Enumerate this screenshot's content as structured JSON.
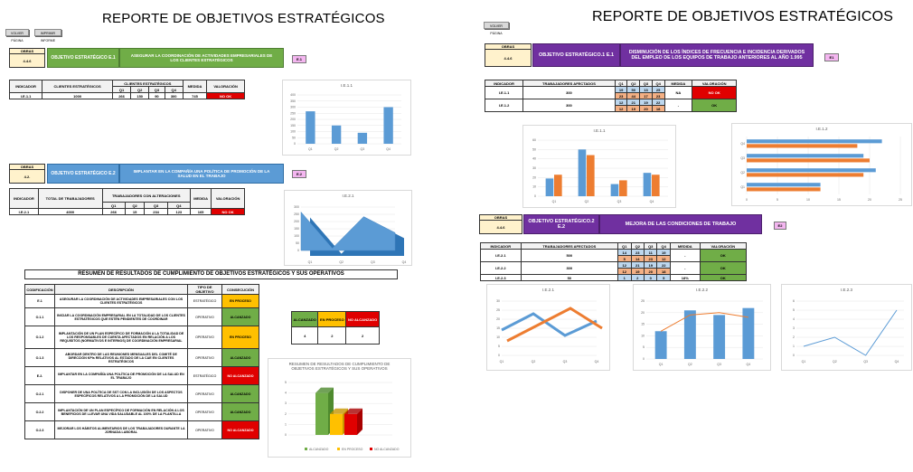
{
  "left": {
    "title": "REPORTE DE OBJETIVOS ESTRATÉGICOS",
    "buttons": [
      "VOLVER PÁGINA",
      "IMPRIMIR INFORME"
    ],
    "sections": [
      {
        "obras_label": "OBRAS",
        "obras_value": "4.4.6",
        "objective_label": "OBJETIVO ESTRATÉGICO E.1",
        "objective_text": "ASEGURAR LA COORDINACIÓN DE ACTIVIDADES EMPRESARIALES DE LOS CLIENTES ESTRATÉGICOS",
        "tag": "E.1",
        "table": {
          "headers": [
            "INDICADOR",
            "CLIENTES ESTRATÉGICOS",
            "CLIENTES ESTRATÉGICOS",
            "MEDIDA",
            "VALORACIÓN"
          ],
          "quarters": [
            "Q1",
            "Q2",
            "Q3",
            "Q4"
          ],
          "rows": [
            {
              "indicator": "I.E.1.1",
              "total": "1000",
              "q": [
                "266",
                "150",
                "90",
                "300"
              ],
              "medida": "745",
              "valoracion": "NO OK"
            }
          ]
        },
        "chart": {
          "title": "I.E.1.1"
        }
      },
      {
        "obras_label": "OBRAS",
        "obras_value": "4.2.",
        "objective_label": "OBJETIVO ESTRATÉGICO E.2",
        "objective_text": "IMPLANTAR EN LA COMPAÑÍA UNA POLÍTICA DE PROMOCIÓN DE LA SALUD EN EL TRABAJO",
        "tag": "E.2",
        "table": {
          "headers": [
            "INDICADOR",
            "TOTAL DE TRABAJADORES",
            "TRABAJADORES CON ALTERACIONES",
            "MEDIDA",
            "VALORACIÓN"
          ],
          "quarters": [
            "Q1",
            "Q2",
            "Q3",
            "Q4"
          ],
          "rows": [
            {
              "indicator": "I.E.2.1",
              "total": "4000",
              "q": [
                "266",
                "15",
                "234",
                "123"
              ],
              "medida": "165",
              "valoracion": "NO OK"
            }
          ]
        },
        "chart": {
          "title": "I.E.2.1"
        }
      }
    ],
    "summary": {
      "title": "RESUMEN DE RESULTADOS DE CUMPLIMIENTO DE OBJETIVOS ESTRATÉGICOS Y SUS OPERATIVOS",
      "headers": [
        "CODIFICACIÓN",
        "DESCRIPCIÓN",
        "TIPO DE OBJETIVO",
        "CONSECUCIÓN"
      ],
      "rows": [
        {
          "code": "E.1",
          "desc": "ASEGURAR LA COORDINACIÓN DE ACTIVIDADES EMPRESARIALES CON LOS CLIENTES ESTRATÉGICOS",
          "type": "ESTRATÉGICO",
          "status": "EN PROCESO"
        },
        {
          "code": "O.1.1",
          "desc": "INICIAR LA COORDINACIÓN EMPRESARIAL EN LA TOTALIDAD DE LOS CLIENTES ESTRATÉGICOS QUE ESTÉN PENDIENTES DE COORDINAR",
          "type": "OPERATIVO",
          "status": "ALCANZADO"
        },
        {
          "code": "O.1.2",
          "desc": "IMPLANTACIÓN DE UN PLAN ESPECÍFICO DE FORMACIÓN A LA TOTALIDAD DE LOS RESPONSABLES DE CUENTA AFECTADOS EN RELACIÓN A LOS REQUISITOS (NORMATIVOS E INTERNOS) DE COORDINACIÓN EMPRESARIAL",
          "type": "OPERATIVO",
          "status": "EN PROCESO"
        },
        {
          "code": "O.1.3",
          "desc": "ABORDAR DENTRO DE LAS REUNIONES MENSUALES DEL COMITÉ DE DIRECCIÓN KPIs RELATIVOS AL ESTADO DE LA CAE EN CLIENTES ESTRATÉGICOS",
          "type": "OPERATIVO",
          "status": "ALCANZADO"
        },
        {
          "code": "E.2.",
          "desc": "IMPLANTAR EN LA COMPAÑÍA UNA POLÍTICA DE PROMOCIÓN DE LA SALUD EN EL TRABAJO",
          "type": "ESTRATÉGICO",
          "status": "NO ALCANZADO"
        },
        {
          "code": "O.2.1",
          "desc": "DISPONER DE UNA POLÍTICA DE SST CON LA INCLUSIÓN DE LOS ASPECTOS ESPECÍFICOS RELATIVOS A LA PROMOCIÓN DE LA SALUD",
          "type": "OPERATIVO",
          "status": "ALCANZADO"
        },
        {
          "code": "O.2.2",
          "desc": "IMPLANTACIÓN DE UN PLAN ESPECÍFICO DE FORMACIÓN EN RELACIÓN A LOS BENEFICIOS DE LLEVAR UNA VIDA SALUDABLE AL 100% DE LA PLANTILLA",
          "type": "OPERATIVO",
          "status": "ALCANZADO"
        },
        {
          "code": "O.2.3",
          "desc": "MEJORAR LOS HÁBITOS ALIMENTARIOS DE LOS TRABAJADORES DURANTE LA JORNADA LABORAL",
          "type": "OPERATIVO",
          "status": "NO ALCANZADO"
        }
      ],
      "counts": {
        "headers": [
          "ALCANZADO",
          "EN PROCESO",
          "NO ALCANZADO"
        ],
        "values": [
          "4",
          "2",
          "2"
        ]
      },
      "chart": {
        "title": "RESUMEN DE RESULTADOS DE CUMPLIMIENTO DE OBJETIVOS ESTRATÉGICOS Y SUS OPERATIVOS",
        "legend": [
          "ALCANZADO",
          "EN PROCESO",
          "NO ALCANZADO"
        ]
      }
    }
  },
  "right": {
    "title": "REPORTE DE OBJETIVOS ESTRATÉGICOS",
    "buttons": [
      "VOLVER PÁGINA"
    ],
    "section1": {
      "obras_label": "OBRAS",
      "obras_value": "4.4.6",
      "objective_label": "OBJETIVO ESTRATÉGICO.1 E.1",
      "objective_text": "DISMINUCIÓN DE LOS ÍNDICES DE FRECUENCIA E INCIDENCIA DERIVADOS DEL EMPLEO DE LOS EQUIPOS DE TRABAJO ANTERIORES AL AÑO 1.995",
      "tag": "E1",
      "headers": [
        "INDICADOR",
        "TRABAJADORES AFECTADOS",
        "Q1",
        "Q2",
        "Q3",
        "Q4",
        "MEDIDA",
        "VALORACIÓN"
      ],
      "rows": [
        {
          "indicator": "I.E.1.1",
          "total": "300",
          "qa": [
            "19",
            "50",
            "13",
            "25"
          ],
          "qb": [
            "23",
            "44",
            "17",
            "23"
          ],
          "medida": "NA",
          "valoracion": "NO OK"
        },
        {
          "indicator": "I.E.1.2",
          "total": "300",
          "qa": [
            "12",
            "21",
            "19",
            "22"
          ],
          "qb": [
            "12",
            "19",
            "20",
            "18"
          ],
          "medida": "-",
          "valoracion": "OK"
        }
      ],
      "chart1": {
        "title": "I.E.1.1"
      },
      "chart2": {
        "title": "I.E.1.2"
      }
    },
    "section2": {
      "obras_label": "OBRAS",
      "obras_value": "4.4.6",
      "objective_label": "OBJETIVO ESTRATÉGICO.2 E.2",
      "objective_text": "MEJORA DE LAS CONDICIONES DE TRABAJO",
      "tag": "E2",
      "headers": [
        "INDICADOR",
        "TRABAJADORES AFECTADOS",
        "Q1",
        "Q2",
        "Q3",
        "Q4",
        "MEDIDA",
        "VALORACIÓN"
      ],
      "rows": [
        {
          "indicator": "I.E.2.1",
          "total": "500",
          "qa": [
            "14",
            "23",
            "11",
            "19"
          ],
          "qb": [
            "5",
            "14",
            "23",
            "12"
          ],
          "medida": "-",
          "valoracion": "OK"
        },
        {
          "indicator": "I.E.2.2",
          "total": "300",
          "qa": [
            "12",
            "21",
            "19",
            "22"
          ],
          "qb": [
            "12",
            "19",
            "20",
            "18"
          ],
          "medida": "-",
          "valoracion": "OK"
        },
        {
          "indicator": "I.E.2.3",
          "total": "50",
          "qa": [
            "1",
            "2",
            "0",
            "5"
          ],
          "qb": [],
          "medida": "18%",
          "valoracion": "OK"
        }
      ],
      "chart1": {
        "title": "I.E.2.1"
      },
      "chart2": {
        "title": "I.E.2.2"
      },
      "chart3": {
        "title": "I.E.2.3"
      }
    }
  },
  "quarters": [
    "Q1",
    "Q2",
    "Q3",
    "Q4"
  ],
  "colors": {
    "blue": "#5b9bd5",
    "orange": "#ed7d31",
    "green": "#70ad47",
    "yellow": "#ffc000",
    "red": "#e00000",
    "purple": "#7030a0"
  },
  "chart_data": [
    {
      "type": "bar",
      "title": "I.E.1.1",
      "categories": [
        "Q1",
        "Q2",
        "Q3",
        "Q4"
      ],
      "values": [
        266,
        150,
        90,
        300
      ],
      "ylim": [
        0,
        400
      ]
    },
    {
      "type": "area",
      "title": "I.E.2.1",
      "categories": [
        "Q1",
        "Q2",
        "Q3",
        "Q4"
      ],
      "values": [
        266,
        15,
        234,
        123
      ],
      "ylim": [
        0,
        300
      ]
    },
    {
      "type": "bar",
      "title": "RESUMEN DE RESULTADOS DE CUMPLIMIENTO DE OBJETIVOS ESTRATÉGICOS Y SUS OPERATIVOS",
      "categories": [
        "ALCANZADO",
        "EN PROCESO",
        "NO ALCANZADO"
      ],
      "values": [
        4,
        2,
        2
      ],
      "ylim": [
        0,
        5
      ]
    },
    {
      "type": "bar",
      "title": "I.E.1.1",
      "categories": [
        "Q1",
        "Q2",
        "Q3",
        "Q4"
      ],
      "series": [
        {
          "values": [
            19,
            50,
            13,
            25
          ]
        },
        {
          "values": [
            23,
            44,
            17,
            23
          ]
        }
      ],
      "ylim": [
        0,
        60
      ]
    },
    {
      "type": "bar",
      "title": "I.E.1.2",
      "orientation": "horizontal",
      "categories": [
        "Q1",
        "Q2",
        "Q3",
        "Q4"
      ],
      "series": [
        {
          "values": [
            12,
            21,
            19,
            22
          ]
        },
        {
          "values": [
            12,
            19,
            20,
            18
          ]
        }
      ],
      "xlim": [
        0,
        25
      ]
    },
    {
      "type": "line",
      "title": "I.E.2.1",
      "categories": [
        "Q1",
        "Q2",
        "Q3",
        "Q4"
      ],
      "series": [
        {
          "values": [
            14,
            23,
            11,
            19
          ]
        },
        {
          "values": [
            5,
            14,
            23,
            12
          ]
        }
      ],
      "ylim": [
        0,
        30
      ]
    },
    {
      "type": "bar",
      "title": "I.E.2.2",
      "categories": [
        "Q1",
        "Q2",
        "Q3",
        "Q4"
      ],
      "series": [
        {
          "values": [
            12,
            21,
            19,
            22
          ]
        },
        {
          "values": [
            12,
            19,
            20,
            18
          ],
          "style": "line"
        }
      ],
      "ylim": [
        0,
        25
      ]
    },
    {
      "type": "line",
      "title": "I.E.2.3",
      "categories": [
        "Q1",
        "Q2",
        "Q3",
        "Q4"
      ],
      "values": [
        1,
        2,
        0,
        5
      ],
      "ylim": [
        0,
        6
      ]
    }
  ]
}
